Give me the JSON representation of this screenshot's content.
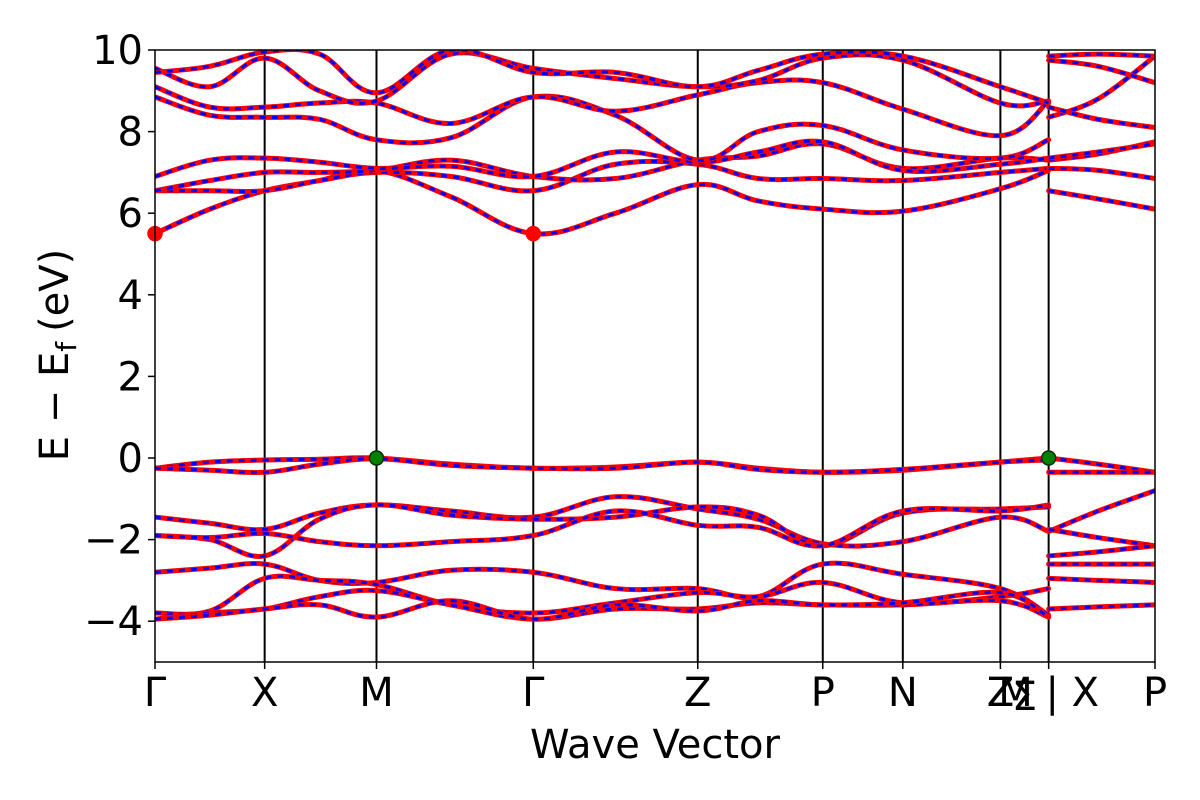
{
  "chart_data": {
    "type": "line",
    "title": "",
    "xlabel": "Wave Vector",
    "ylabel": "E − E_f (eV)",
    "ylabel_parts": {
      "main": "E − E",
      "sub": "f",
      "unit": "(eV)"
    },
    "ylim": [
      -5,
      10
    ],
    "yticks": [
      -4,
      -2,
      0,
      2,
      4,
      6,
      8,
      10
    ],
    "ytick_labels": [
      "−4",
      "−2",
      "0",
      "2",
      "4",
      "6",
      "8",
      "10"
    ],
    "kpath_positions": [
      0,
      1.0,
      2.02,
      3.45,
      4.95,
      6.09,
      6.82,
      7.71,
      8.15,
      9.12
    ],
    "kpath_labels": [
      "Γ",
      "X",
      "M",
      "Γ",
      "Z",
      "P",
      "N",
      "Z",
      "M | X",
      "P"
    ],
    "extra_label": {
      "text": "Σ",
      "after_index": 7
    },
    "segments": [
      [
        0,
        3,
        4,
        5,
        6,
        7,
        8
      ],
      [
        8,
        9
      ]
    ],
    "series": [
      {
        "color": "#ff0000",
        "x": [
          0,
          0.5,
          1.0,
          1.5,
          2.02,
          2.7,
          3.45,
          4.2,
          4.95,
          5.5,
          6.09,
          6.82,
          7.71,
          8.15
        ],
        "y": [
          -0.25,
          -0.1,
          -0.05,
          -0.03,
          0.0,
          -0.15,
          -0.25,
          -0.22,
          -0.1,
          -0.25,
          -0.35,
          -0.3,
          -0.1,
          0.0
        ]
      },
      {
        "color": "#ff0000",
        "x": [
          0,
          0.5,
          1.0,
          1.5,
          2.02,
          2.7,
          3.45,
          4.2,
          4.95,
          5.5,
          6.09,
          6.82,
          7.71,
          8.15
        ],
        "y": [
          -0.25,
          -0.3,
          -0.35,
          -0.15,
          -0.02,
          -0.18,
          -0.25,
          -0.25,
          -0.1,
          -0.28,
          -0.35,
          -0.28,
          -0.1,
          -0.05
        ]
      },
      {
        "color": "#ff0000",
        "x": [
          0,
          0.5,
          1.0,
          1.5,
          2.02,
          2.7,
          3.45,
          4.2,
          4.95,
          5.5,
          6.09,
          6.82,
          7.71,
          8.15
        ],
        "y": [
          -1.45,
          -1.6,
          -1.75,
          -1.35,
          -1.15,
          -1.3,
          -1.45,
          -0.95,
          -1.25,
          -1.5,
          -2.1,
          -2.05,
          -1.45,
          -1.8
        ]
      },
      {
        "color": "#ff0000",
        "x": [
          0,
          0.5,
          1.0,
          1.5,
          2.02,
          2.7,
          3.45,
          4.2,
          4.95,
          5.5,
          6.09,
          6.82,
          7.71,
          8.15
        ],
        "y": [
          -1.9,
          -2.0,
          -2.4,
          -1.5,
          -1.15,
          -1.4,
          -1.5,
          -1.45,
          -1.2,
          -1.4,
          -2.15,
          -1.35,
          -1.25,
          -1.2
        ]
      },
      {
        "color": "#ff0000",
        "x": [
          0,
          0.5,
          1.0,
          1.5,
          2.02,
          2.7,
          3.45,
          4.2,
          4.95,
          5.5,
          6.09,
          6.82,
          7.71,
          8.15
        ],
        "y": [
          -1.9,
          -1.95,
          -1.85,
          -2.05,
          -2.15,
          -2.05,
          -1.9,
          -1.3,
          -1.65,
          -1.7,
          -2.15,
          -1.3,
          -1.3,
          -1.15
        ]
      },
      {
        "color": "#ff0000",
        "x": [
          0,
          0.5,
          1.0,
          1.5,
          2.02,
          2.7,
          3.45,
          4.2,
          4.95,
          5.5,
          6.09,
          6.82,
          7.71,
          8.15
        ],
        "y": [
          -2.8,
          -2.7,
          -2.6,
          -3.0,
          -3.05,
          -2.75,
          -2.8,
          -3.2,
          -3.2,
          -3.4,
          -2.6,
          -2.85,
          -3.2,
          -3.85
        ]
      },
      {
        "color": "#ff0000",
        "x": [
          0,
          0.5,
          1.0,
          1.5,
          2.02,
          2.7,
          3.45,
          4.2,
          4.95,
          5.5,
          6.09,
          6.82,
          7.71,
          8.15
        ],
        "y": [
          -3.8,
          -3.75,
          -2.95,
          -3.0,
          -3.1,
          -3.6,
          -3.8,
          -3.55,
          -3.3,
          -3.4,
          -3.05,
          -3.55,
          -3.4,
          -3.2
        ]
      },
      {
        "color": "#ff0000",
        "x": [
          0,
          0.5,
          1.0,
          1.5,
          2.02,
          2.7,
          3.45,
          4.2,
          4.95,
          5.5,
          6.09,
          6.82,
          7.71,
          8.15
        ],
        "y": [
          -3.95,
          -3.8,
          -3.7,
          -3.4,
          -3.25,
          -3.6,
          -3.95,
          -3.7,
          -3.7,
          -3.55,
          -3.6,
          -3.6,
          -3.5,
          -3.9
        ]
      },
      {
        "color": "#ff0000",
        "x": [
          0,
          0.5,
          1.0,
          1.5,
          2.02,
          2.7,
          3.45,
          4.2,
          4.95,
          5.5,
          6.09,
          6.82,
          7.71,
          8.15
        ],
        "y": [
          -3.95,
          -3.85,
          -3.7,
          -3.6,
          -3.9,
          -3.5,
          -3.95,
          -3.6,
          -3.75,
          -3.5,
          -3.6,
          -3.55,
          -3.3,
          -3.9
        ]
      },
      {
        "color": "#ff0000",
        "x": [
          0,
          0.5,
          1.0,
          1.5,
          2.02,
          2.7,
          3.45,
          4.2,
          4.95,
          5.5,
          6.09,
          6.82,
          7.71,
          8.15
        ],
        "y": [
          5.5,
          6.1,
          6.55,
          6.8,
          7.05,
          6.4,
          5.5,
          6.0,
          6.7,
          6.3,
          6.1,
          6.05,
          6.6,
          7.05
        ]
      },
      {
        "color": "#ff0000",
        "x": [
          0,
          0.5,
          1.0,
          1.5,
          2.02,
          2.7,
          3.45,
          4.2,
          4.95,
          5.5,
          6.09,
          6.82,
          7.71,
          8.15
        ],
        "y": [
          6.55,
          6.55,
          6.55,
          6.8,
          7.0,
          6.9,
          6.55,
          7.2,
          7.2,
          6.85,
          6.85,
          6.8,
          7.0,
          7.1
        ]
      },
      {
        "color": "#ff0000",
        "x": [
          0,
          0.5,
          1.0,
          1.5,
          2.02,
          2.7,
          3.45,
          4.2,
          4.95,
          5.5,
          6.09,
          6.82,
          7.71,
          8.15
        ],
        "y": [
          6.55,
          6.8,
          7.0,
          7.0,
          7.05,
          7.3,
          6.9,
          6.85,
          7.3,
          7.4,
          7.7,
          7.1,
          7.35,
          7.3
        ]
      },
      {
        "color": "#ff0000",
        "x": [
          0,
          0.5,
          1.0,
          1.5,
          2.02,
          2.7,
          3.45,
          4.2,
          4.95,
          5.5,
          6.09,
          6.82,
          7.71,
          8.15
        ],
        "y": [
          6.9,
          7.3,
          7.35,
          7.25,
          7.1,
          7.15,
          6.9,
          7.5,
          7.25,
          7.5,
          7.75,
          7.05,
          7.2,
          7.35
        ]
      },
      {
        "color": "#ff0000",
        "x": [
          0,
          0.5,
          1.0,
          1.5,
          2.02,
          2.7,
          3.45,
          4.2,
          4.95,
          5.5,
          6.09,
          6.82,
          7.71,
          8.15
        ],
        "y": [
          8.85,
          8.4,
          8.35,
          8.3,
          7.8,
          7.85,
          8.85,
          8.4,
          7.3,
          8.0,
          8.15,
          7.55,
          7.35,
          7.8
        ]
      },
      {
        "color": "#ff0000",
        "x": [
          0,
          0.5,
          1.0,
          1.5,
          2.02,
          2.7,
          3.45,
          4.2,
          4.95,
          5.5,
          6.09,
          6.82,
          7.71,
          8.15
        ],
        "y": [
          9.1,
          8.6,
          8.6,
          8.7,
          8.7,
          8.2,
          8.85,
          8.5,
          8.9,
          9.2,
          9.2,
          8.55,
          7.9,
          8.75
        ]
      },
      {
        "color": "#ff0000",
        "x": [
          0,
          0.5,
          1.0,
          1.5,
          2.02,
          2.7,
          3.45,
          4.2,
          4.95,
          5.5,
          6.09,
          6.82,
          7.71,
          8.15
        ],
        "y": [
          9.55,
          9.1,
          9.8,
          9.0,
          8.75,
          9.9,
          9.55,
          9.3,
          9.1,
          9.25,
          9.8,
          9.75,
          8.7,
          8.75
        ]
      },
      {
        "color": "#ff0000",
        "x": [
          0,
          0.5,
          1.0,
          1.5,
          2.02,
          2.7,
          3.45,
          4.2,
          4.95,
          5.5,
          6.09,
          6.82,
          7.71,
          8.15
        ],
        "y": [
          9.45,
          9.6,
          9.95,
          9.9,
          8.95,
          10.0,
          9.45,
          9.45,
          9.1,
          9.5,
          9.9,
          9.85,
          9.1,
          8.7
        ]
      },
      {
        "color": "#ff0000",
        "x": [
          8.15,
          8.6,
          9.12
        ],
        "y": [
          0.0,
          -0.15,
          -0.35
        ]
      },
      {
        "color": "#ff0000",
        "x": [
          8.15,
          8.6,
          9.12
        ],
        "y": [
          -0.35,
          -0.35,
          -0.35
        ]
      },
      {
        "color": "#ff0000",
        "x": [
          8.15,
          8.6,
          9.12
        ],
        "y": [
          -1.8,
          -1.3,
          -0.8
        ]
      },
      {
        "color": "#ff0000",
        "x": [
          8.15,
          8.6,
          9.12
        ],
        "y": [
          -1.75,
          -1.95,
          -2.15
        ]
      },
      {
        "color": "#ff0000",
        "x": [
          8.15,
          8.6,
          9.12
        ],
        "y": [
          -2.4,
          -2.3,
          -2.15
        ]
      },
      {
        "color": "#ff0000",
        "x": [
          8.15,
          8.6,
          9.12
        ],
        "y": [
          -2.6,
          -2.6,
          -2.6
        ]
      },
      {
        "color": "#ff0000",
        "x": [
          8.15,
          8.6,
          9.12
        ],
        "y": [
          -2.95,
          -3.0,
          -3.05
        ]
      },
      {
        "color": "#ff0000",
        "x": [
          8.15,
          8.6,
          9.12
        ],
        "y": [
          -3.7,
          -3.65,
          -3.6
        ]
      },
      {
        "color": "#ff0000",
        "x": [
          8.15,
          8.6,
          9.12
        ],
        "y": [
          6.55,
          6.35,
          6.1
        ]
      },
      {
        "color": "#ff0000",
        "x": [
          8.15,
          8.6,
          9.12
        ],
        "y": [
          7.1,
          7.05,
          6.85
        ]
      },
      {
        "color": "#ff0000",
        "x": [
          8.15,
          8.6,
          9.12
        ],
        "y": [
          7.3,
          7.45,
          7.75
        ]
      },
      {
        "color": "#ff0000",
        "x": [
          8.15,
          8.6,
          9.12
        ],
        "y": [
          7.35,
          7.5,
          7.7
        ]
      },
      {
        "color": "#ff0000",
        "x": [
          8.15,
          8.6,
          9.12
        ],
        "y": [
          8.35,
          8.8,
          9.85
        ]
      },
      {
        "color": "#ff0000",
        "x": [
          8.15,
          8.6,
          9.12
        ],
        "y": [
          8.6,
          8.3,
          8.1
        ]
      },
      {
        "color": "#ff0000",
        "x": [
          8.15,
          8.6,
          9.12
        ],
        "y": [
          9.75,
          9.6,
          9.2
        ]
      },
      {
        "color": "#ff0000",
        "x": [
          8.15,
          8.6,
          9.12
        ],
        "y": [
          9.85,
          9.9,
          9.85
        ]
      }
    ],
    "markers": [
      {
        "x": 0,
        "y": 5.5,
        "color": "#ff0000"
      },
      {
        "x": 3.45,
        "y": 5.5,
        "color": "#ff0000"
      },
      {
        "x": 2.02,
        "y": 0.0,
        "color": "#008000"
      },
      {
        "x": 8.15,
        "y": 0.0,
        "color": "#008000"
      }
    ],
    "grid": false,
    "legend": "none",
    "band_colors": {
      "primary": "#ff0000",
      "overlay": "#0000ff"
    }
  }
}
